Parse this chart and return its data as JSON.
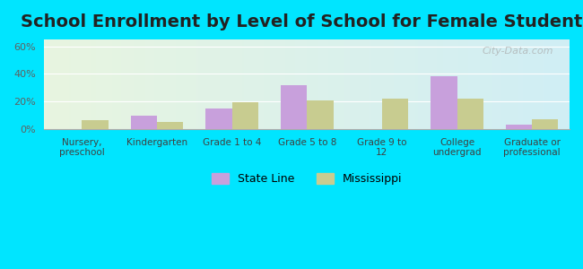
{
  "title": "School Enrollment by Level of School for Female Students",
  "categories": [
    "Nursery,\npreschool",
    "Kindergarten",
    "Grade 1 to 4",
    "Grade 5 to 8",
    "Grade 9 to\n12",
    "College\nundergrad",
    "Graduate or\nprofessional"
  ],
  "state_line": [
    0.0,
    10.0,
    15.0,
    32.0,
    0.0,
    38.5,
    3.5
  ],
  "mississippi": [
    6.5,
    5.5,
    19.5,
    20.5,
    22.0,
    22.0,
    7.0
  ],
  "state_line_color": "#c8a0dc",
  "mississippi_color": "#c8cc90",
  "background_outer": "#00e5ff",
  "background_inner_left": "#e8f5e0",
  "background_inner_right": "#d0eef5",
  "ylim": [
    0,
    65
  ],
  "yticks": [
    0,
    20,
    40,
    60
  ],
  "ytick_labels": [
    "0%",
    "20%",
    "40%",
    "60%"
  ],
  "watermark": "City-Data.com",
  "title_fontsize": 14,
  "bar_width": 0.35
}
